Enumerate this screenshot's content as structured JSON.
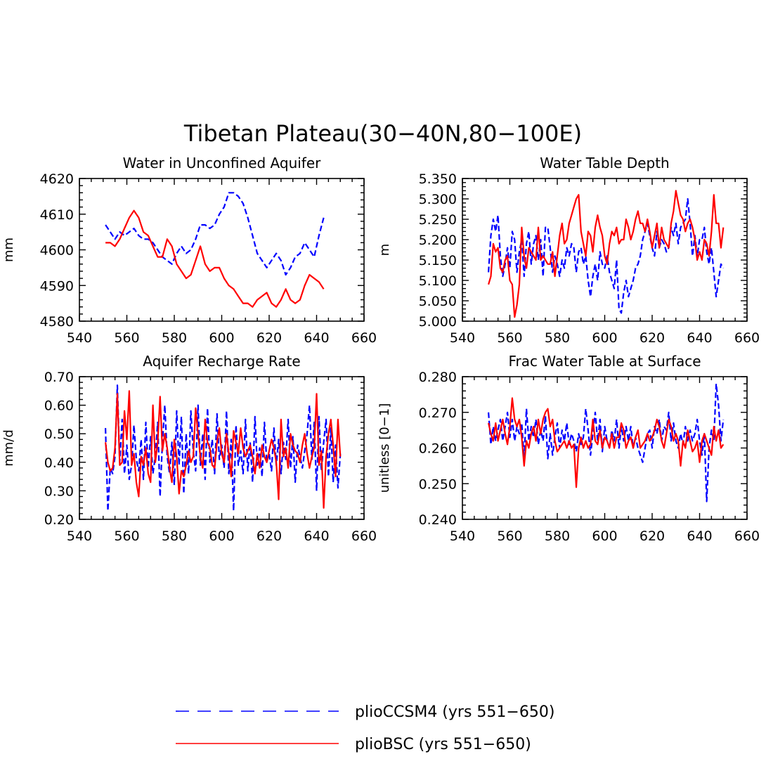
{
  "title": "Tibetan Plateau(30−40N,80−100E)",
  "colors": {
    "ccsm4": "#0000ff",
    "bsc": "#ff0000"
  },
  "legend": [
    {
      "key": "ccsm4",
      "label": "plioCCSM4 (yrs 551−650)",
      "style": "dashed"
    },
    {
      "key": "bsc",
      "label": "plioBSC (yrs 551−650)",
      "style": "solid"
    }
  ],
  "chart_data": [
    {
      "type": "line",
      "title": "Water in Unconfined Aquifer",
      "ylabel": "mm",
      "xlim": [
        540,
        660
      ],
      "ylim": [
        4580,
        4620
      ],
      "xticks": [
        540,
        560,
        580,
        600,
        620,
        640,
        660
      ],
      "yticks": [
        4580,
        4590,
        4600,
        4610,
        4620
      ],
      "yticklabels": [
        "4580",
        "4590",
        "4600",
        "4610",
        "4620"
      ],
      "series": [
        {
          "key": "ccsm4",
          "x_start": 551,
          "x_step": 2,
          "values": [
            4607,
            4605,
            4603,
            4605,
            4604,
            4605,
            4606,
            4604,
            4603,
            4603,
            4602,
            4600,
            4598,
            4597,
            4596,
            4599,
            4601,
            4599,
            4600,
            4603,
            4607,
            4607,
            4606,
            4607,
            4610,
            4612,
            4616,
            4616,
            4615,
            4613,
            4609,
            4604,
            4599,
            4597,
            4595,
            4597,
            4599,
            4597,
            4593,
            4595,
            4598,
            4599,
            4602,
            4600,
            4598,
            4604,
            4609
          ]
        },
        {
          "key": "bsc",
          "x_start": 551,
          "x_step": 2,
          "values": [
            4602,
            4602,
            4601,
            4603,
            4606,
            4609,
            4611,
            4609,
            4605,
            4604,
            4601,
            4598,
            4598,
            4603,
            4601,
            4596,
            4594,
            4592,
            4593,
            4597,
            4601,
            4596,
            4594,
            4595,
            4595,
            4592,
            4590,
            4589,
            4587,
            4585,
            4585,
            4584,
            4586,
            4587,
            4588,
            4585,
            4584,
            4586,
            4589,
            4586,
            4585,
            4586,
            4590,
            4593,
            4592,
            4591,
            4589
          ]
        }
      ]
    },
    {
      "type": "line",
      "title": "Water Table Depth",
      "ylabel": "m",
      "xlim": [
        540,
        660
      ],
      "ylim": [
        5.0,
        5.35
      ],
      "xticks": [
        540,
        560,
        580,
        600,
        620,
        640,
        660
      ],
      "yticks": [
        5.0,
        5.05,
        5.1,
        5.15,
        5.2,
        5.25,
        5.3,
        5.35
      ],
      "yticklabels": [
        "5.000",
        "5.050",
        "5.100",
        "5.150",
        "5.200",
        "5.250",
        "5.300",
        "5.350"
      ],
      "series": [
        {
          "key": "ccsm4",
          "x_start": 551,
          "x_step": 1,
          "values": [
            5.12,
            5.21,
            5.25,
            5.22,
            5.26,
            5.16,
            5.11,
            5.14,
            5.18,
            5.13,
            5.22,
            5.2,
            5.12,
            5.17,
            5.2,
            5.11,
            5.19,
            5.22,
            5.14,
            5.19,
            5.21,
            5.15,
            5.2,
            5.11,
            5.23,
            5.23,
            5.18,
            5.12,
            5.16,
            5.14,
            5.11,
            5.15,
            5.13,
            5.18,
            5.16,
            5.19,
            5.18,
            5.12,
            5.17,
            5.18,
            5.14,
            5.16,
            5.1,
            5.06,
            5.11,
            5.14,
            5.1,
            5.17,
            5.14,
            5.13,
            5.16,
            5.12,
            5.1,
            5.08,
            5.15,
            5.03,
            5.02,
            5.07,
            5.1,
            5.06,
            5.08,
            5.1,
            5.13,
            5.14,
            5.16,
            5.2,
            5.22,
            5.24,
            5.21,
            5.18,
            5.16,
            5.22,
            5.18,
            5.2,
            5.19,
            5.17,
            5.18,
            5.23,
            5.21,
            5.24,
            5.19,
            5.23,
            5.24,
            5.25,
            5.3,
            5.24,
            5.16,
            5.21,
            5.16,
            5.2,
            5.2,
            5.23,
            5.17,
            5.14,
            5.18,
            5.12,
            5.06,
            5.1,
            5.14,
            5.13
          ]
        },
        {
          "key": "bsc",
          "x_start": 551,
          "x_step": 1,
          "values": [
            5.09,
            5.11,
            5.19,
            5.17,
            5.18,
            5.13,
            5.12,
            5.15,
            5.16,
            5.1,
            5.09,
            5.01,
            5.04,
            5.09,
            5.23,
            5.16,
            5.13,
            5.18,
            5.17,
            5.16,
            5.15,
            5.23,
            5.15,
            5.16,
            5.15,
            5.14,
            5.14,
            5.17,
            5.11,
            5.16,
            5.21,
            5.24,
            5.19,
            5.2,
            5.24,
            5.26,
            5.28,
            5.3,
            5.31,
            5.22,
            5.19,
            5.16,
            5.22,
            5.21,
            5.17,
            5.23,
            5.26,
            5.23,
            5.21,
            5.16,
            5.14,
            5.19,
            5.22,
            5.21,
            5.23,
            5.19,
            5.2,
            5.2,
            5.25,
            5.23,
            5.2,
            5.22,
            5.25,
            5.27,
            5.24,
            5.24,
            5.22,
            5.25,
            5.22,
            5.18,
            5.21,
            5.24,
            5.18,
            5.23,
            5.2,
            5.19,
            5.18,
            5.24,
            5.27,
            5.32,
            5.29,
            5.26,
            5.25,
            5.22,
            5.24,
            5.25,
            5.23,
            5.2,
            5.15,
            5.17,
            5.15,
            5.2,
            5.19,
            5.16,
            5.22,
            5.31,
            5.24,
            5.24,
            5.18,
            5.23
          ]
        }
      ]
    },
    {
      "type": "line",
      "title": "Aquifer Recharge Rate",
      "ylabel": "mm/d",
      "xlim": [
        540,
        660
      ],
      "ylim": [
        0.2,
        0.7
      ],
      "xticks": [
        540,
        560,
        580,
        600,
        620,
        640,
        660
      ],
      "yticks": [
        0.2,
        0.3,
        0.4,
        0.5,
        0.6,
        0.7
      ],
      "yticklabels": [
        "0.20",
        "0.30",
        "0.40",
        "0.50",
        "0.60",
        "0.70"
      ],
      "series": [
        {
          "key": "ccsm4",
          "x_start": 551,
          "x_step": 1,
          "values": [
            0.52,
            0.23,
            0.38,
            0.36,
            0.42,
            0.67,
            0.4,
            0.55,
            0.36,
            0.46,
            0.34,
            0.39,
            0.53,
            0.41,
            0.37,
            0.48,
            0.34,
            0.54,
            0.38,
            0.49,
            0.36,
            0.42,
            0.54,
            0.28,
            0.47,
            0.6,
            0.42,
            0.36,
            0.47,
            0.32,
            0.58,
            0.39,
            0.56,
            0.29,
            0.5,
            0.36,
            0.58,
            0.44,
            0.37,
            0.6,
            0.39,
            0.5,
            0.34,
            0.59,
            0.4,
            0.48,
            0.36,
            0.57,
            0.41,
            0.46,
            0.38,
            0.58,
            0.36,
            0.48,
            0.23,
            0.53,
            0.39,
            0.44,
            0.36,
            0.55,
            0.37,
            0.47,
            0.33,
            0.56,
            0.39,
            0.45,
            0.35,
            0.54,
            0.4,
            0.43,
            0.37,
            0.52,
            0.39,
            0.48,
            0.36,
            0.47,
            0.41,
            0.55,
            0.38,
            0.49,
            0.33,
            0.46,
            0.42,
            0.38,
            0.44,
            0.5,
            0.6,
            0.41,
            0.54,
            0.3,
            0.56,
            0.37,
            0.47,
            0.55,
            0.35,
            0.52,
            0.33,
            0.46,
            0.31,
            0.43
          ]
        },
        {
          "key": "bsc",
          "x_start": 551,
          "x_step": 1,
          "values": [
            0.47,
            0.4,
            0.37,
            0.38,
            0.45,
            0.64,
            0.39,
            0.4,
            0.58,
            0.48,
            0.65,
            0.39,
            0.43,
            0.33,
            0.28,
            0.42,
            0.39,
            0.45,
            0.36,
            0.33,
            0.6,
            0.4,
            0.47,
            0.63,
            0.44,
            0.5,
            0.45,
            0.38,
            0.33,
            0.48,
            0.42,
            0.29,
            0.37,
            0.35,
            0.39,
            0.44,
            0.4,
            0.42,
            0.59,
            0.5,
            0.42,
            0.38,
            0.55,
            0.47,
            0.45,
            0.39,
            0.38,
            0.47,
            0.52,
            0.43,
            0.4,
            0.5,
            0.43,
            0.35,
            0.51,
            0.47,
            0.43,
            0.52,
            0.45,
            0.42,
            0.44,
            0.46,
            0.42,
            0.36,
            0.43,
            0.38,
            0.46,
            0.42,
            0.4,
            0.44,
            0.48,
            0.45,
            0.4,
            0.27,
            0.55,
            0.42,
            0.45,
            0.38,
            0.5,
            0.46,
            0.44,
            0.43,
            0.4,
            0.46,
            0.5,
            0.43,
            0.38,
            0.42,
            0.45,
            0.64,
            0.39,
            0.44,
            0.24,
            0.42,
            0.5,
            0.55,
            0.46,
            0.35,
            0.55,
            0.42
          ]
        }
      ]
    },
    {
      "type": "line",
      "title": "Frac Water Table at Surface",
      "ylabel": "unitless [0−1]",
      "xlim": [
        540,
        660
      ],
      "ylim": [
        0.24,
        0.28
      ],
      "xticks": [
        540,
        560,
        580,
        600,
        620,
        640,
        660
      ],
      "yticks": [
        0.24,
        0.25,
        0.26,
        0.27,
        0.28
      ],
      "yticklabels": [
        "0.240",
        "0.250",
        "0.260",
        "0.270",
        "0.280"
      ],
      "series": [
        {
          "key": "ccsm4",
          "x_start": 551,
          "x_step": 1,
          "values": [
            0.27,
            0.261,
            0.266,
            0.262,
            0.265,
            0.268,
            0.262,
            0.266,
            0.27,
            0.263,
            0.268,
            0.262,
            0.266,
            0.264,
            0.267,
            0.257,
            0.271,
            0.262,
            0.266,
            0.263,
            0.268,
            0.261,
            0.265,
            0.262,
            0.269,
            0.257,
            0.264,
            0.258,
            0.263,
            0.267,
            0.26,
            0.265,
            0.262,
            0.267,
            0.261,
            0.264,
            0.262,
            0.259,
            0.264,
            0.261,
            0.263,
            0.271,
            0.265,
            0.258,
            0.264,
            0.27,
            0.262,
            0.268,
            0.259,
            0.266,
            0.262,
            0.26,
            0.265,
            0.262,
            0.268,
            0.26,
            0.266,
            0.262,
            0.266,
            0.262,
            0.266,
            0.26,
            0.263,
            0.26,
            0.258,
            0.256,
            0.26,
            0.264,
            0.265,
            0.26,
            0.266,
            0.264,
            0.268,
            0.262,
            0.266,
            0.265,
            0.27,
            0.262,
            0.267,
            0.262,
            0.26,
            0.264,
            0.261,
            0.266,
            0.262,
            0.265,
            0.262,
            0.264,
            0.268,
            0.262,
            0.258,
            0.264,
            0.245,
            0.26,
            0.265,
            0.262,
            0.278,
            0.272,
            0.262,
            0.268
          ]
        },
        {
          "key": "bsc",
          "x_start": 551,
          "x_step": 1,
          "values": [
            0.267,
            0.264,
            0.262,
            0.267,
            0.262,
            0.265,
            0.268,
            0.264,
            0.261,
            0.266,
            0.274,
            0.268,
            0.266,
            0.268,
            0.263,
            0.255,
            0.262,
            0.26,
            0.264,
            0.266,
            0.262,
            0.268,
            0.264,
            0.268,
            0.27,
            0.271,
            0.266,
            0.268,
            0.262,
            0.259,
            0.26,
            0.261,
            0.262,
            0.26,
            0.262,
            0.26,
            0.261,
            0.249,
            0.26,
            0.263,
            0.26,
            0.262,
            0.26,
            0.261,
            0.268,
            0.262,
            0.261,
            0.265,
            0.26,
            0.263,
            0.262,
            0.26,
            0.264,
            0.26,
            0.263,
            0.263,
            0.267,
            0.265,
            0.26,
            0.262,
            0.263,
            0.26,
            0.263,
            0.265,
            0.26,
            0.261,
            0.262,
            0.264,
            0.262,
            0.263,
            0.265,
            0.268,
            0.266,
            0.262,
            0.26,
            0.264,
            0.268,
            0.266,
            0.262,
            0.264,
            0.262,
            0.255,
            0.262,
            0.26,
            0.265,
            0.262,
            0.259,
            0.26,
            0.262,
            0.256,
            0.262,
            0.264,
            0.262,
            0.26,
            0.258,
            0.266,
            0.262,
            0.265,
            0.26,
            0.261
          ]
        }
      ]
    }
  ]
}
